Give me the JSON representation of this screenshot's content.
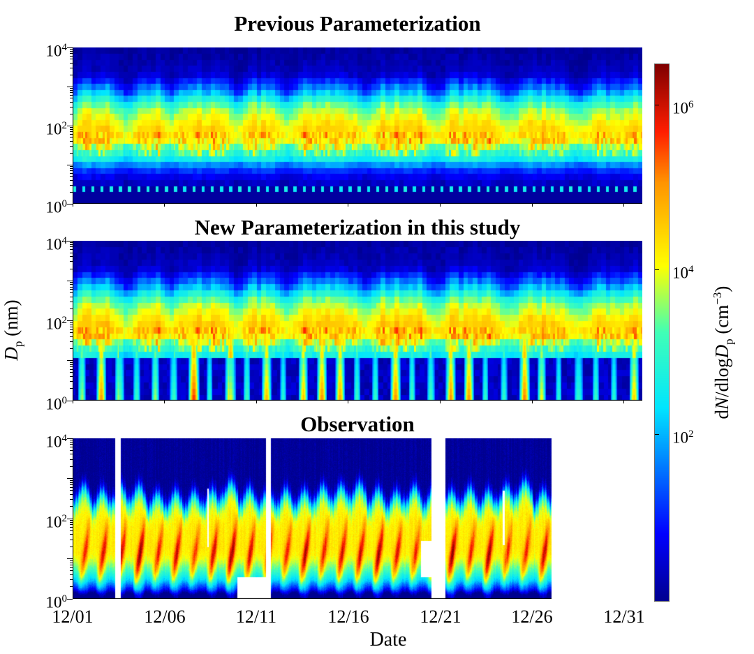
{
  "figure": {
    "background": "#ffffff",
    "text_color": "#000000"
  },
  "panels": [
    {
      "id": "previous",
      "title": "Previous Parameterization"
    },
    {
      "id": "new",
      "title": "New Parameterization in this study"
    },
    {
      "id": "observation",
      "title": "Observation"
    }
  ],
  "y_axis": {
    "label": {
      "symbol": "D",
      "sub": "p",
      "unit": " (nm)"
    },
    "scale": "log",
    "range_nm": [
      1,
      10000
    ],
    "ticks": [
      {
        "base": "10",
        "exp": "4"
      },
      {
        "base": "10",
        "exp": "2"
      },
      {
        "base": "10",
        "exp": "0"
      }
    ]
  },
  "x_axis": {
    "label": "Date",
    "ticks": [
      "12/01",
      "12/06",
      "12/11",
      "12/16",
      "12/21",
      "12/26",
      "12/31"
    ],
    "span_days": 31,
    "start_date": "12/01"
  },
  "colorbar": {
    "label_parts": {
      "p0": "d",
      "p1": "N",
      "p2": "/dlog",
      "p3": "D",
      "p4": "p",
      "p5": " (cm",
      "p6": "−3",
      "p7": ")"
    },
    "ticks": [
      {
        "base": "10",
        "exp": "6"
      },
      {
        "base": "10",
        "exp": "4"
      },
      {
        "base": "10",
        "exp": "2"
      }
    ],
    "scale": "log",
    "log10_range": [
      0,
      6.5
    ],
    "colormap": "jet",
    "jet_stops": [
      [
        0,
        [
          0,
          0,
          143
        ]
      ],
      [
        0.125,
        [
          0,
          0,
          255
        ]
      ],
      [
        0.36,
        [
          0,
          229,
          255
        ]
      ],
      [
        0.5,
        [
          64,
          255,
          183
        ]
      ],
      [
        0.625,
        [
          255,
          255,
          0
        ]
      ],
      [
        0.78,
        [
          255,
          148,
          0
        ]
      ],
      [
        0.875,
        [
          255,
          30,
          0
        ]
      ],
      [
        1,
        [
          128,
          0,
          0
        ]
      ]
    ]
  },
  "chart_data": [
    {
      "type": "heatmap",
      "title": "Previous Parameterization",
      "style": "blocky-model",
      "x_days": [
        0,
        31
      ],
      "y_logDp": [
        0,
        4
      ],
      "z_log10_conc_range": [
        0,
        6.5
      ],
      "episodes": [
        [
          0,
          2.3,
          1
        ],
        [
          3.3,
          5.0,
          0.85
        ],
        [
          5.6,
          8.4,
          1
        ],
        [
          9.2,
          11.2,
          0.9
        ],
        [
          11.9,
          15.4,
          1
        ],
        [
          16.2,
          19.2,
          0.95
        ],
        [
          20.0,
          23.2,
          1
        ],
        [
          24.0,
          26.9,
          0.9
        ],
        [
          27.9,
          31,
          0.8
        ]
      ],
      "profile_base": [
        [
          4,
          0.08
        ],
        [
          3.35,
          0.08
        ],
        [
          3.05,
          0.35
        ],
        [
          2.8,
          1.0
        ],
        [
          2.6,
          2.2
        ],
        [
          2.4,
          2.9
        ],
        [
          2.2,
          3.3
        ],
        [
          2.0,
          3.7
        ],
        [
          1.75,
          4.0
        ],
        [
          1.55,
          3.7
        ],
        [
          1.45,
          2.7
        ],
        [
          1.2,
          2.45
        ],
        [
          1.05,
          1.6
        ],
        [
          0.85,
          0.9
        ],
        [
          0.6,
          0.3
        ],
        [
          0,
          0.15
        ]
      ],
      "profile_episode": [
        [
          4,
          0.1
        ],
        [
          3.35,
          0.5
        ],
        [
          3.05,
          1.7
        ],
        [
          2.8,
          2.7
        ],
        [
          2.6,
          3.5
        ],
        [
          2.4,
          4.0
        ],
        [
          2.2,
          4.3
        ],
        [
          2.0,
          4.55
        ],
        [
          1.75,
          4.75
        ],
        [
          1.55,
          4.6
        ],
        [
          1.45,
          4.3
        ],
        [
          1.2,
          3.1
        ],
        [
          1.05,
          2.2
        ],
        [
          0.85,
          1.2
        ],
        [
          0.6,
          0.5
        ],
        [
          0,
          0.2
        ]
      ],
      "bottom_dashes": {
        "logDp": [
          0.26,
          0.46
        ],
        "period_days": 0.5,
        "width_days": 0.17,
        "value": 2.4
      },
      "npf_streaks": false
    },
    {
      "type": "heatmap",
      "title": "New Parameterization in this study",
      "style": "blocky-model",
      "x_days": [
        0,
        31
      ],
      "y_logDp": [
        0,
        4
      ],
      "z_log10_conc_range": [
        0,
        6.5
      ],
      "episodes": [
        [
          0,
          2.3,
          1
        ],
        [
          3.3,
          5.0,
          0.85
        ],
        [
          5.6,
          8.4,
          1
        ],
        [
          9.2,
          11.2,
          0.9
        ],
        [
          11.9,
          15.4,
          1
        ],
        [
          16.2,
          19.2,
          0.95
        ],
        [
          20.0,
          23.2,
          1
        ],
        [
          24.0,
          26.9,
          0.9
        ],
        [
          27.9,
          31,
          0.8
        ]
      ],
      "profile_base": [
        [
          4,
          0.08
        ],
        [
          3.35,
          0.08
        ],
        [
          3.05,
          0.35
        ],
        [
          2.8,
          1.0
        ],
        [
          2.6,
          2.2
        ],
        [
          2.4,
          2.9
        ],
        [
          2.2,
          3.3
        ],
        [
          2.0,
          3.7
        ],
        [
          1.75,
          4.05
        ],
        [
          1.55,
          3.8
        ],
        [
          1.45,
          2.7
        ],
        [
          1.2,
          2.45
        ],
        [
          1.05,
          1.6
        ],
        [
          0.85,
          0.9
        ],
        [
          0.6,
          0.3
        ],
        [
          0,
          0.15
        ]
      ],
      "profile_episode": [
        [
          4,
          0.1
        ],
        [
          3.35,
          0.5
        ],
        [
          3.05,
          1.7
        ],
        [
          2.8,
          2.7
        ],
        [
          2.6,
          3.5
        ],
        [
          2.4,
          4.0
        ],
        [
          2.2,
          4.35
        ],
        [
          2.0,
          4.65
        ],
        [
          1.75,
          4.85
        ],
        [
          1.55,
          4.7
        ],
        [
          1.45,
          4.35
        ],
        [
          1.2,
          3.1
        ],
        [
          1.05,
          2.2
        ],
        [
          0.85,
          1.2
        ],
        [
          0.6,
          0.5
        ],
        [
          0,
          0.2
        ]
      ],
      "bottom_dashes": null,
      "npf_streaks": true
    },
    {
      "type": "heatmap",
      "title": "Observation",
      "style": "smooth-observed",
      "x_days": [
        0,
        31
      ],
      "y_logDp": [
        0,
        4
      ],
      "z_log10_conc_range": [
        0,
        6.5
      ],
      "profile_base": [
        [
          4,
          0.05
        ],
        [
          2.95,
          0.05
        ],
        [
          2.75,
          0.6
        ],
        [
          2.55,
          2.0
        ],
        [
          2.4,
          3.2
        ],
        [
          2.2,
          3.9
        ],
        [
          1.9,
          4.2
        ],
        [
          1.3,
          4.25
        ],
        [
          0.95,
          4.05
        ],
        [
          0.7,
          3.7
        ],
        [
          0.45,
          3.0
        ],
        [
          0.25,
          2.0
        ],
        [
          0.1,
          0.8
        ],
        [
          0,
          0.5
        ]
      ],
      "daily_growth_events": {
        "center_logDp_range": [
          0.3,
          2.0
        ],
        "peak_log10_conc": 5.4
      },
      "data_gaps": [
        {
          "t0": 2.3,
          "t1": 2.62,
          "d0": 0,
          "d1": 4
        },
        {
          "t0": 7.3,
          "t1": 7.4,
          "d0": 1.3,
          "d1": 2.75
        },
        {
          "t0": 8.94,
          "t1": 10.49,
          "d0": 0,
          "d1": 0.55
        },
        {
          "t0": 10.49,
          "t1": 10.78,
          "d0": 0,
          "d1": 4
        },
        {
          "t0": 18.94,
          "t1": 19.51,
          "d0": 0.55,
          "d1": 1.45
        },
        {
          "t0": 19.51,
          "t1": 20.27,
          "d0": 0,
          "d1": 4
        },
        {
          "t0": 23.38,
          "t1": 23.48,
          "d0": 1.35,
          "d1": 2.7
        }
      ],
      "data_end_day": 26.05
    }
  ]
}
